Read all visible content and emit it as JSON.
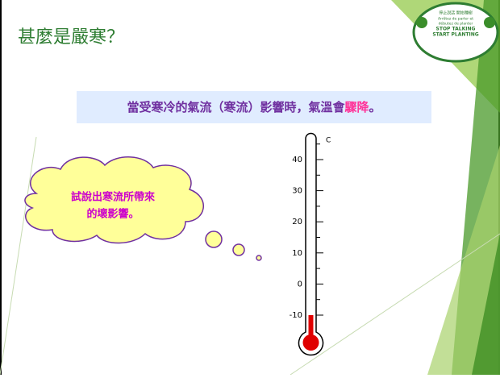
{
  "title": "甚麼是嚴寒？",
  "banner": {
    "segments": [
      "當受寒冷的氣流（寒流）影響時，氣溫會",
      "驟降",
      "。"
    ]
  },
  "cloud": {
    "lines": [
      "試說出寒流所帶來",
      "的壞影響。"
    ]
  },
  "logo": {
    "lines": [
      "停止說話 開始種樹",
      "Arrêtez de parler et",
      "débutez de planter",
      "STOP TALKING",
      "START PLANTING"
    ]
  },
  "thermometer": {
    "unit": "C",
    "ticks": [
      40,
      30,
      20,
      10,
      0,
      -10
    ],
    "minor_ticks": [
      45,
      35,
      25,
      15,
      5,
      -5
    ],
    "level": -10,
    "lim": [
      -10,
      40
    ]
  }
}
